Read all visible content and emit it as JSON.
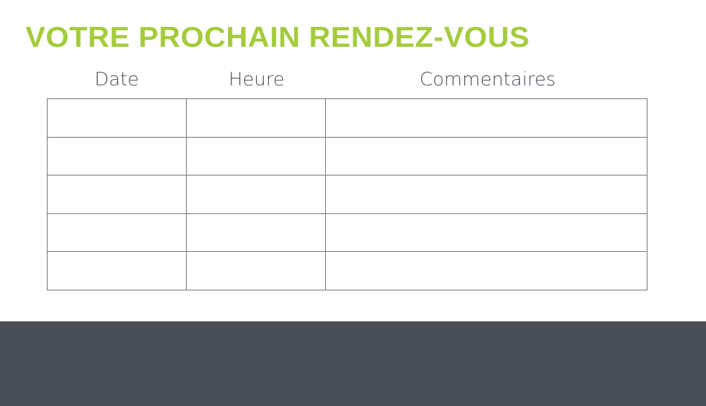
{
  "title": "VOTRE PROCHAIN RENDEZ-VOUS",
  "table": {
    "headers": [
      "Date",
      "Heure",
      "Commentaires"
    ],
    "rows": [
      [
        "",
        "",
        ""
      ],
      [
        "",
        "",
        ""
      ],
      [
        "",
        "",
        ""
      ],
      [
        "",
        "",
        ""
      ],
      [
        "",
        "",
        ""
      ]
    ]
  },
  "colors": {
    "accent": "#a4cc3c",
    "text": "#4a4e57",
    "footer": "#4a4e57"
  }
}
